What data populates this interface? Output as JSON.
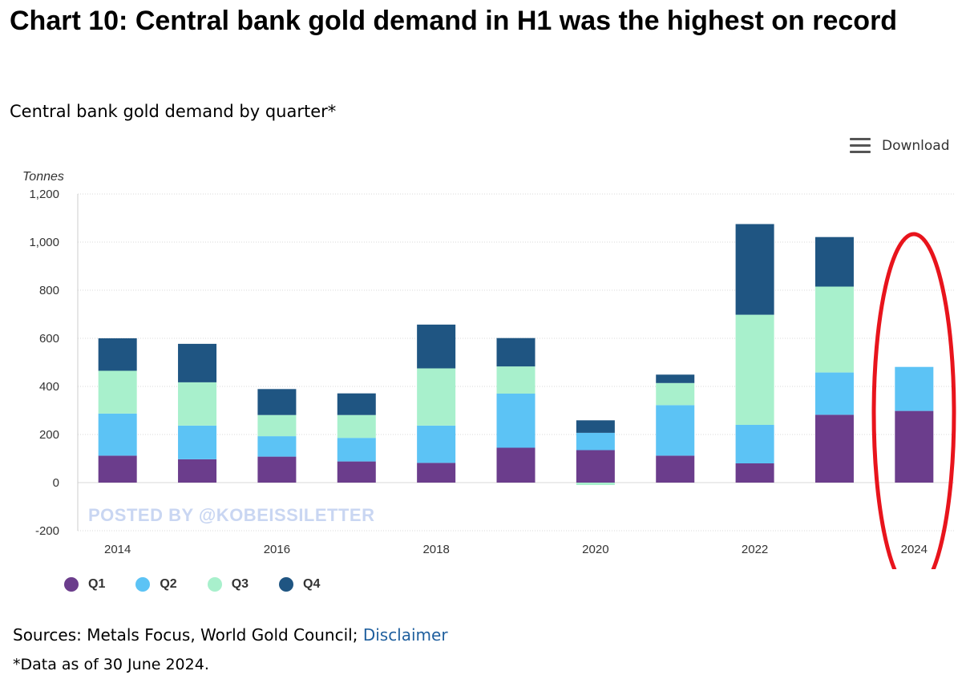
{
  "header": {
    "title": "Chart 10: Central bank gold demand in H1 was the highest on record",
    "subtitle": "Central bank gold demand by quarter*"
  },
  "toolbar": {
    "download_label": "Download",
    "icon": "hamburger-menu-icon"
  },
  "watermark": "POSTED BY @KOBEISSILETTER",
  "footer": {
    "sources_prefix": "Sources: Metals Focus, World Gold Council; ",
    "disclaimer_link": "Disclaimer",
    "note": "*Data as of 30 June 2024."
  },
  "annotation": {
    "shape": "ellipse",
    "color": "#e8141c",
    "highlights": "2024"
  },
  "chart_data": {
    "type": "bar",
    "stacked": true,
    "ylabel": "Tonnes",
    "ylim": [
      -200,
      1200
    ],
    "yticks": [
      "1,200",
      "1,000",
      "800",
      "600",
      "400",
      "200",
      "0",
      "-200"
    ],
    "ytick_values": [
      1200,
      1000,
      800,
      600,
      400,
      200,
      0,
      -200
    ],
    "categories": [
      "2014",
      "2015",
      "2016",
      "2017",
      "2018",
      "2019",
      "2020",
      "2021",
      "2022",
      "2023",
      "2024"
    ],
    "xtick_labels": [
      "2014",
      "",
      "2016",
      "",
      "2018",
      "",
      "2020",
      "",
      "2022",
      "",
      "2024"
    ],
    "grid": true,
    "legend_position": "bottom-left",
    "series": [
      {
        "name": "Q1",
        "color": "#6b3d8c",
        "values": [
          112,
          97,
          108,
          88,
          82,
          145,
          135,
          112,
          80,
          282,
          298
        ]
      },
      {
        "name": "Q2",
        "color": "#5cc3f5",
        "values": [
          175,
          140,
          85,
          98,
          155,
          225,
          72,
          210,
          160,
          176,
          183
        ]
      },
      {
        "name": "Q3",
        "color": "#a8f0cc",
        "values": [
          178,
          180,
          88,
          95,
          238,
          113,
          -10,
          92,
          458,
          357,
          0
        ]
      },
      {
        "name": "Q4",
        "color": "#1f5582",
        "values": [
          135,
          160,
          108,
          90,
          182,
          118,
          52,
          35,
          377,
          206,
          0
        ]
      }
    ]
  }
}
